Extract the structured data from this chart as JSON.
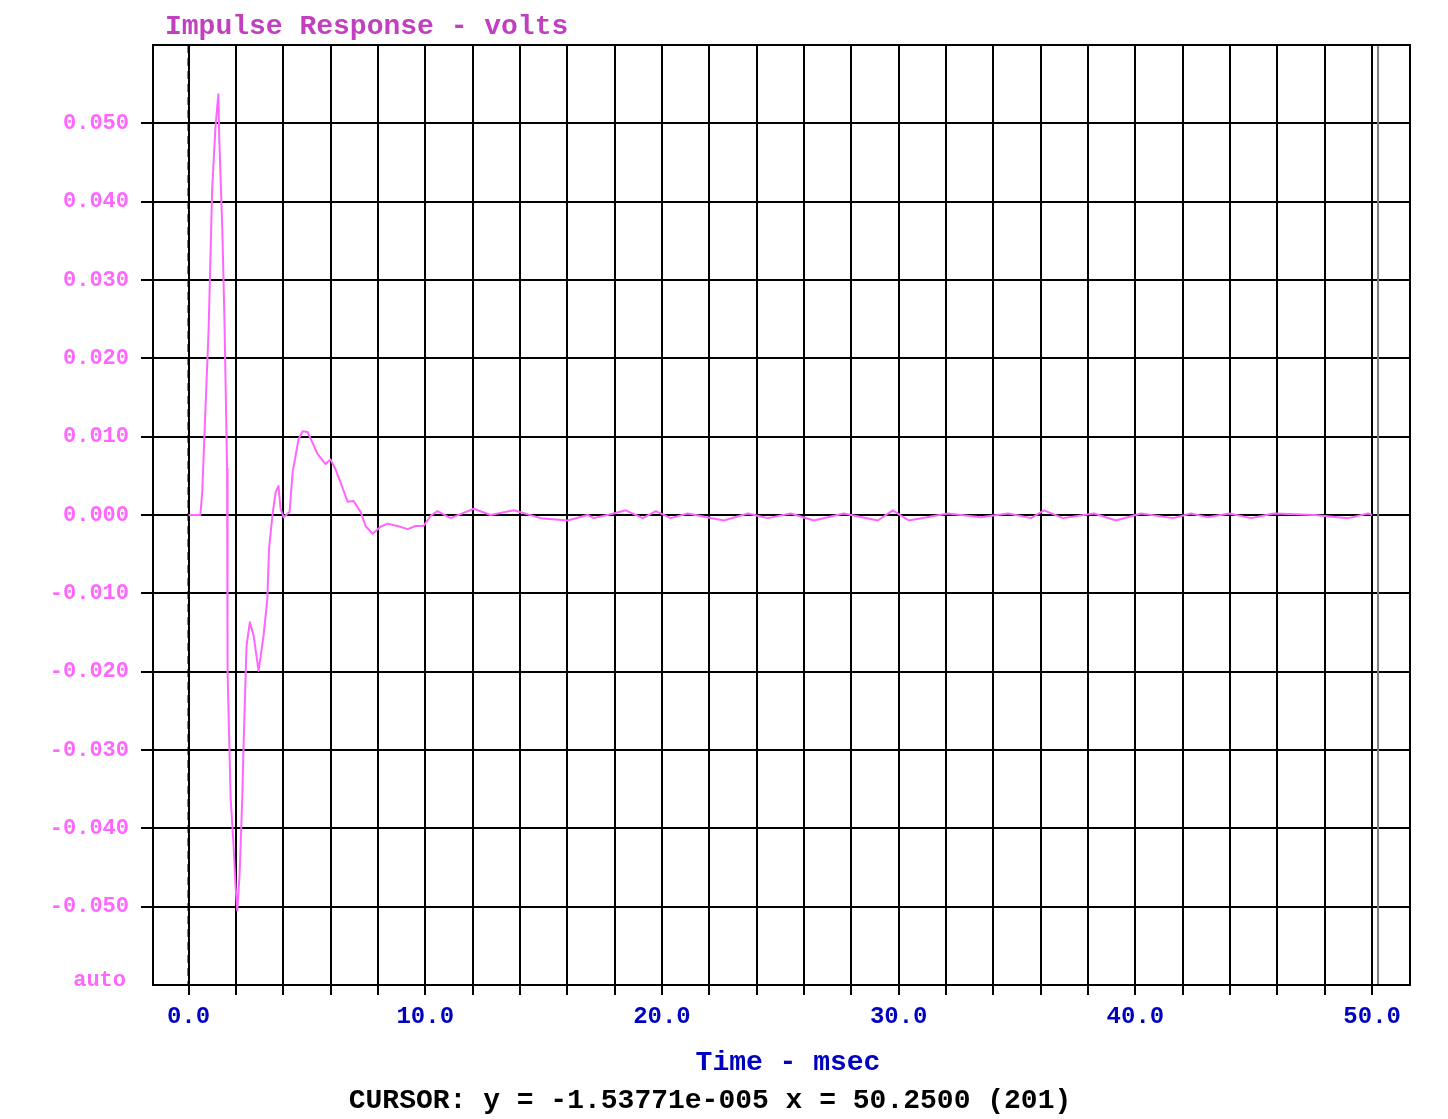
{
  "chart_data": {
    "type": "line",
    "title": "Impulse Response - volts",
    "xlabel": "Time - msec",
    "annotations": [
      "auto",
      "CURSOR: y = -1.53771e-005 x = 50.2500 (201)"
    ],
    "x": [
      0,
      0.5,
      0.58,
      0.72,
      0.85,
      1.0,
      1.14,
      1.26,
      1.3,
      1.43,
      1.52,
      1.63,
      1.65,
      1.78,
      1.9,
      1.99,
      2.06,
      2.16,
      2.27,
      2.33,
      2.45,
      2.59,
      2.75,
      2.96,
      3.17,
      3.33,
      3.4,
      3.55,
      3.68,
      3.8,
      3.89,
      4.02,
      4.27,
      4.4,
      4.52,
      4.65,
      4.82,
      5.03,
      5.45,
      5.79,
      6.0,
      6.2,
      6.42,
      6.72,
      6.97,
      7.27,
      7.48,
      7.78,
      8.11,
      8.41,
      8.83,
      9.26,
      9.59,
      9.93,
      10.23,
      10.52,
      11.07,
      12.05,
      12.76,
      13.74,
      14.88,
      16.02,
      16.86,
      17.12,
      17.96,
      18.47,
      19.19,
      19.74,
      20.37,
      21.09,
      22.61,
      23.63,
      24.47,
      25.44,
      26.42,
      27.68,
      29.12,
      29.75,
      30.43,
      32.08,
      33.47,
      34.62,
      35.59,
      36.14,
      36.94,
      38.25,
      39.18,
      40.24,
      41.59,
      42.35,
      43.07,
      43.96,
      44.89,
      45.86,
      47.55,
      48.99,
      49.83,
      50.0
    ],
    "series": [
      {
        "color": "#ff66ff",
        "values": [
          0,
          0,
          0.0029,
          0.0139,
          0.0237,
          0.0416,
          0.0496,
          0.0537,
          0.048,
          0.0362,
          0.0247,
          0.0059,
          -0.02,
          -0.0362,
          -0.042,
          -0.0475,
          -0.0505,
          -0.0458,
          -0.0362,
          -0.029,
          -0.0167,
          -0.0137,
          -0.0154,
          -0.0199,
          -0.0154,
          -0.0107,
          -0.0044,
          0.0001,
          0.0029,
          0.0037,
          0.0008,
          -0.0003,
          0.0004,
          0.0055,
          0.0075,
          0.0097,
          0.0107,
          0.0106,
          0.0078,
          0.0065,
          0.0071,
          0.0059,
          0.0042,
          0.0017,
          0.0018,
          0.0004,
          -0.0014,
          -0.0024,
          -0.0015,
          -0.0011,
          -0.0014,
          -0.0018,
          -0.0014,
          -0.0014,
          -0.0001,
          0.0005,
          -0.0004,
          0.0008,
          0,
          0.0006,
          -0.0004,
          -0.0007,
          0,
          -0.0004,
          0.0002,
          0.0006,
          -0.0004,
          0.0005,
          -0.0004,
          0.0002,
          -0.0007,
          0.0002,
          -0.0004,
          0.0002,
          -0.0007,
          0.0002,
          -0.0007,
          0.0006,
          -0.0007,
          0.0002,
          -0.0003,
          0.0002,
          -0.0004,
          0.0006,
          -0.0004,
          0.0002,
          -0.0007,
          0.0002,
          -0.0004,
          0.0002,
          -0.0003,
          0.0002,
          -0.0004,
          0.0002,
          0,
          -0.0004,
          0.0002,
          0
        ]
      }
    ],
    "xlim": [
      -1.5,
      51.6
    ],
    "ylim": [
      -0.06,
      0.06
    ],
    "xticks": [
      {
        "value": 0,
        "label": "0.0"
      },
      {
        "value": 2,
        "label": null
      },
      {
        "value": 4,
        "label": null
      },
      {
        "value": 6,
        "label": null
      },
      {
        "value": 8,
        "label": null
      },
      {
        "value": 10,
        "label": "10.0"
      },
      {
        "value": 12,
        "label": null
      },
      {
        "value": 14,
        "label": null
      },
      {
        "value": 16,
        "label": null
      },
      {
        "value": 18,
        "label": null
      },
      {
        "value": 20,
        "label": "20.0"
      },
      {
        "value": 22,
        "label": null
      },
      {
        "value": 24,
        "label": null
      },
      {
        "value": 26,
        "label": null
      },
      {
        "value": 28,
        "label": null
      },
      {
        "value": 30,
        "label": "30.0"
      },
      {
        "value": 32,
        "label": null
      },
      {
        "value": 34,
        "label": null
      },
      {
        "value": 36,
        "label": null
      },
      {
        "value": 38,
        "label": null
      },
      {
        "value": 40,
        "label": "40.0"
      },
      {
        "value": 42,
        "label": null
      },
      {
        "value": 44,
        "label": null
      },
      {
        "value": 46,
        "label": null
      },
      {
        "value": 48,
        "label": null
      },
      {
        "value": 50,
        "label": "50.0"
      }
    ],
    "yticks": [
      {
        "value": -0.05,
        "label": "-0.050"
      },
      {
        "value": -0.04,
        "label": "-0.040"
      },
      {
        "value": -0.03,
        "label": "-0.030"
      },
      {
        "value": -0.02,
        "label": "-0.020"
      },
      {
        "value": -0.01,
        "label": "-0.010"
      },
      {
        "value": 0,
        "label": "0.000"
      },
      {
        "value": 0.01,
        "label": "0.010"
      },
      {
        "value": 0.02,
        "label": "0.020"
      },
      {
        "value": 0.03,
        "label": "0.030"
      },
      {
        "value": 0.04,
        "label": "0.040"
      },
      {
        "value": 0.05,
        "label": "0.050"
      }
    ],
    "grid": true,
    "legend": false,
    "marker": "none",
    "line_style": "solid",
    "ref_lines": [
      {
        "axis": "x",
        "value": 0,
        "color": "#000000",
        "line_style": "dashed"
      },
      {
        "axis": "x",
        "value": 50.25,
        "color": "#808080",
        "line_style": "solid"
      }
    ]
  }
}
